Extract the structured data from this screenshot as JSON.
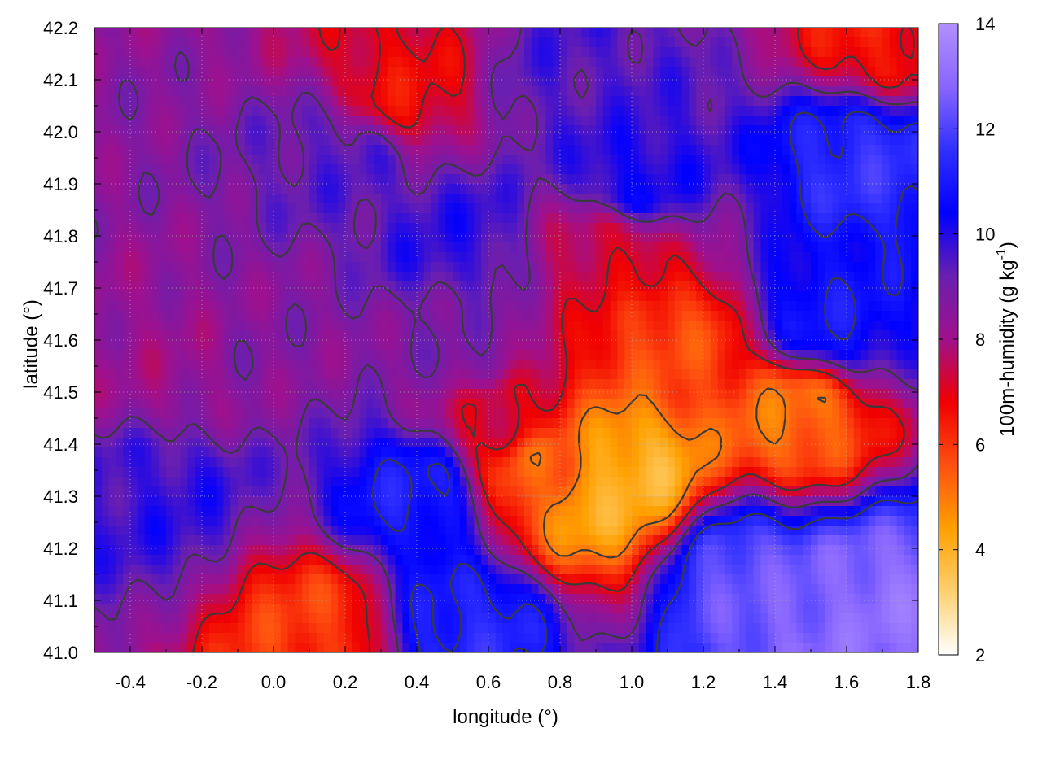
{
  "chart_data": {
    "type": "heatmap",
    "title": "",
    "xlabel": "longitude (°)",
    "ylabel": "latitude (°)",
    "colorbar_label": "100m-humidity (g kg",
    "colorbar_label_sup": "-1",
    "colorbar_label_end": ")",
    "xlim": [
      -0.5,
      1.8
    ],
    "ylim": [
      41.0,
      42.2
    ],
    "clim": [
      2,
      14
    ],
    "x_ticks": [
      "-0.4",
      "-0.2",
      "0.0",
      "0.2",
      "0.4",
      "0.6",
      "0.8",
      "1.0",
      "1.2",
      "1.4",
      "1.6",
      "1.8"
    ],
    "x_tick_values": [
      -0.4,
      -0.2,
      0.0,
      0.2,
      0.4,
      0.6,
      0.8,
      1.0,
      1.2,
      1.4,
      1.6,
      1.8
    ],
    "y_ticks": [
      "41.0",
      "41.1",
      "41.2",
      "41.3",
      "41.4",
      "41.5",
      "41.6",
      "41.7",
      "41.8",
      "41.9",
      "42.0",
      "42.1",
      "42.2"
    ],
    "y_tick_values": [
      41.0,
      41.1,
      41.2,
      41.3,
      41.4,
      41.5,
      41.6,
      41.7,
      41.8,
      41.9,
      42.0,
      42.1,
      42.2
    ],
    "colorbar_ticks": [
      "2",
      "4",
      "6",
      "8",
      "10",
      "12",
      "14"
    ],
    "colorbar_tick_values": [
      2,
      4,
      6,
      8,
      10,
      12,
      14
    ],
    "colormap": [
      "#ffffff",
      "#ffd070",
      "#ffa000",
      "#ff5010",
      "#f00000",
      "#a0108c",
      "#6a1fb0",
      "#0000ff",
      "#3030ff",
      "#8866ff",
      "#b090ff"
    ],
    "grid": true,
    "contour_color": "#3a3a3a",
    "field_features": [
      {
        "lon": -0.3,
        "lat": 41.55,
        "value": 8.2
      },
      {
        "lon": 0.0,
        "lat": 41.6,
        "value": 8.6
      },
      {
        "lon": 0.2,
        "lat": 41.95,
        "value": 9.4
      },
      {
        "lon": 0.5,
        "lat": 41.8,
        "value": 9.8
      },
      {
        "lon": 0.4,
        "lat": 41.3,
        "value": 11.0
      },
      {
        "lon": -0.3,
        "lat": 41.3,
        "value": 9.8
      },
      {
        "lon": 0.1,
        "lat": 41.05,
        "value": 6.0
      },
      {
        "lon": 0.9,
        "lat": 41.3,
        "value": 4.2
      },
      {
        "lon": 1.0,
        "lat": 41.35,
        "value": 4.0
      },
      {
        "lon": 0.75,
        "lat": 41.35,
        "value": 5.5
      },
      {
        "lon": 1.1,
        "lat": 41.6,
        "value": 5.8
      },
      {
        "lon": 1.45,
        "lat": 41.45,
        "value": 5.2
      },
      {
        "lon": 1.3,
        "lat": 41.15,
        "value": 12.3
      },
      {
        "lon": 1.5,
        "lat": 41.05,
        "value": 12.8
      },
      {
        "lon": 1.7,
        "lat": 41.1,
        "value": 13.0
      },
      {
        "lon": 0.55,
        "lat": 41.05,
        "value": 11.3
      },
      {
        "lon": 1.65,
        "lat": 41.95,
        "value": 11.5
      },
      {
        "lon": 1.55,
        "lat": 41.65,
        "value": 10.8
      },
      {
        "lon": 1.0,
        "lat": 41.9,
        "value": 10.2
      },
      {
        "lon": 0.85,
        "lat": 42.1,
        "value": 9.5
      },
      {
        "lon": 0.35,
        "lat": 42.08,
        "value": 6.8
      },
      {
        "lon": 1.7,
        "lat": 42.18,
        "value": 6.5
      },
      {
        "lon": 0.95,
        "lat": 41.78,
        "value": 7.2
      },
      {
        "lon": 0.55,
        "lat": 41.58,
        "value": 8.8
      },
      {
        "lon": 0.65,
        "lat": 41.45,
        "value": 7.0
      }
    ]
  }
}
